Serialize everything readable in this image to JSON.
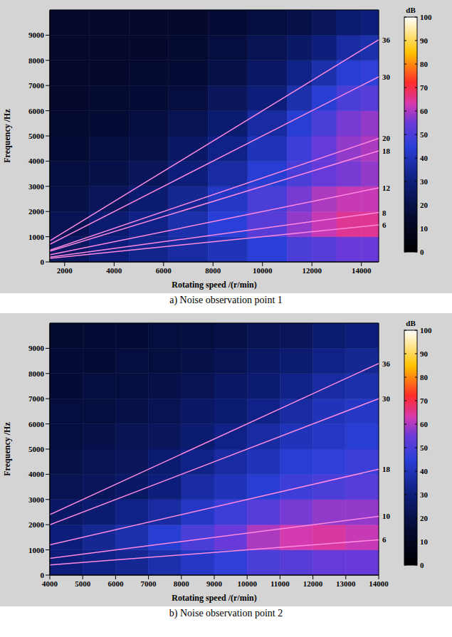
{
  "chart_data": [
    {
      "type": "heatmap",
      "title": "a) Noise observation point 1",
      "x_label": "Rotating speed /(r/min)",
      "y_label": "Frequency /Hz",
      "xlim": [
        1400,
        14700
      ],
      "xticks": [
        2000,
        4000,
        6000,
        8000,
        10000,
        12000,
        14000
      ],
      "ylim": [
        0,
        10000
      ],
      "yticks": [
        0,
        1000,
        2000,
        3000,
        4000,
        5000,
        6000,
        7000,
        8000,
        9000
      ],
      "cells": {
        "x_bins": [
          1400,
          3000,
          4600,
          6200,
          7800,
          9400,
          11000,
          12000,
          13000,
          14000,
          14700
        ],
        "y_bins": [
          0,
          1000,
          2000,
          3000,
          4000,
          5000,
          6000,
          7000,
          8000,
          9000,
          10000
        ],
        "values": [
          [
            25,
            30,
            33,
            36,
            40,
            45,
            50,
            52,
            55,
            55
          ],
          [
            22,
            28,
            32,
            38,
            45,
            52,
            58,
            62,
            65,
            65
          ],
          [
            20,
            24,
            28,
            34,
            42,
            50,
            56,
            60,
            62,
            62
          ],
          [
            18,
            20,
            24,
            30,
            36,
            44,
            50,
            54,
            56,
            58
          ],
          [
            16,
            18,
            20,
            26,
            32,
            40,
            48,
            54,
            58,
            60
          ],
          [
            15,
            16,
            18,
            22,
            28,
            36,
            44,
            50,
            56,
            58
          ],
          [
            14,
            15,
            16,
            18,
            24,
            30,
            38,
            44,
            50,
            52
          ],
          [
            14,
            14,
            15,
            16,
            20,
            26,
            32,
            38,
            44,
            46
          ],
          [
            13,
            14,
            14,
            15,
            18,
            22,
            26,
            30,
            36,
            38
          ],
          [
            13,
            13,
            14,
            14,
            16,
            18,
            20,
            24,
            28,
            30
          ]
        ]
      },
      "colorbar": {
        "label": "dB",
        "range": [
          0,
          100
        ],
        "ticks": [
          0,
          10,
          20,
          30,
          40,
          50,
          60,
          70,
          80,
          90,
          100
        ]
      },
      "series": [
        {
          "name": "36",
          "type": "line",
          "color": "#ff8ae0",
          "x": [
            1400,
            14700
          ],
          "values": [
            840,
            8820
          ]
        },
        {
          "name": "30",
          "type": "line",
          "color": "#ff8ae0",
          "x": [
            1400,
            14700
          ],
          "values": [
            700,
            7350
          ]
        },
        {
          "name": "20",
          "type": "line",
          "color": "#ff8ae0",
          "x": [
            1400,
            14700
          ],
          "values": [
            467,
            4900
          ]
        },
        {
          "name": "18",
          "type": "line",
          "color": "#ff8ae0",
          "x": [
            1400,
            14700
          ],
          "values": [
            420,
            4410
          ]
        },
        {
          "name": "12",
          "type": "line",
          "color": "#ff8ae0",
          "x": [
            1400,
            14700
          ],
          "values": [
            280,
            2940
          ]
        },
        {
          "name": "8",
          "type": "line",
          "color": "#ff8ae0",
          "x": [
            1400,
            14700
          ],
          "values": [
            187,
            1960
          ]
        },
        {
          "name": "6",
          "type": "line",
          "color": "#ff8ae0",
          "x": [
            1400,
            14700
          ],
          "values": [
            140,
            1470
          ]
        }
      ]
    },
    {
      "type": "heatmap",
      "title": "b) Noise observation point 2",
      "x_label": "Rotating speed /(r/min)",
      "y_label": "Frequency /Hz",
      "xlim": [
        4000,
        14000
      ],
      "xticks": [
        4000,
        5000,
        6000,
        7000,
        8000,
        9000,
        10000,
        11000,
        12000,
        13000,
        14000
      ],
      "ylim": [
        0,
        10000
      ],
      "yticks": [
        0,
        1000,
        2000,
        3000,
        4000,
        5000,
        6000,
        7000,
        8000,
        9000
      ],
      "cells": {
        "x_bins": [
          4000,
          5000,
          6000,
          7000,
          8000,
          9000,
          10000,
          11000,
          12000,
          13000,
          14000
        ],
        "y_bins": [
          0,
          1000,
          2000,
          3000,
          4000,
          5000,
          6000,
          7000,
          8000,
          9000,
          10000
        ],
        "values": [
          [
            30,
            32,
            34,
            38,
            42,
            46,
            50,
            52,
            54,
            55
          ],
          [
            30,
            34,
            38,
            44,
            50,
            55,
            60,
            63,
            64,
            62
          ],
          [
            26,
            28,
            32,
            36,
            42,
            48,
            52,
            56,
            58,
            58
          ],
          [
            22,
            24,
            26,
            30,
            36,
            40,
            44,
            48,
            50,
            52
          ],
          [
            20,
            22,
            24,
            28,
            32,
            36,
            40,
            44,
            46,
            48
          ],
          [
            18,
            20,
            22,
            24,
            28,
            32,
            36,
            40,
            42,
            44
          ],
          [
            18,
            18,
            20,
            22,
            26,
            28,
            32,
            36,
            40,
            42
          ],
          [
            16,
            18,
            18,
            20,
            22,
            26,
            28,
            32,
            36,
            38
          ],
          [
            16,
            16,
            18,
            18,
            20,
            22,
            26,
            28,
            32,
            34
          ],
          [
            15,
            16,
            16,
            18,
            18,
            20,
            22,
            24,
            28,
            30
          ]
        ]
      },
      "colorbar": {
        "label": "dB",
        "range": [
          0,
          100
        ],
        "ticks": [
          0,
          10,
          20,
          30,
          40,
          50,
          60,
          70,
          80,
          90,
          100
        ]
      },
      "series": [
        {
          "name": "36",
          "type": "line",
          "color": "#ff8ae0",
          "x": [
            4000,
            14000
          ],
          "values": [
            2400,
            8400
          ]
        },
        {
          "name": "30",
          "type": "line",
          "color": "#ff8ae0",
          "x": [
            4000,
            14000
          ],
          "values": [
            2000,
            7000
          ]
        },
        {
          "name": "18",
          "type": "line",
          "color": "#ff8ae0",
          "x": [
            4000,
            14000
          ],
          "values": [
            1200,
            4200
          ]
        },
        {
          "name": "10",
          "type": "line",
          "color": "#ff8ae0",
          "x": [
            4000,
            14000
          ],
          "values": [
            667,
            2333
          ]
        },
        {
          "name": "6",
          "type": "line",
          "color": "#ff8ae0",
          "x": [
            4000,
            14000
          ],
          "values": [
            400,
            1400
          ]
        }
      ]
    }
  ]
}
